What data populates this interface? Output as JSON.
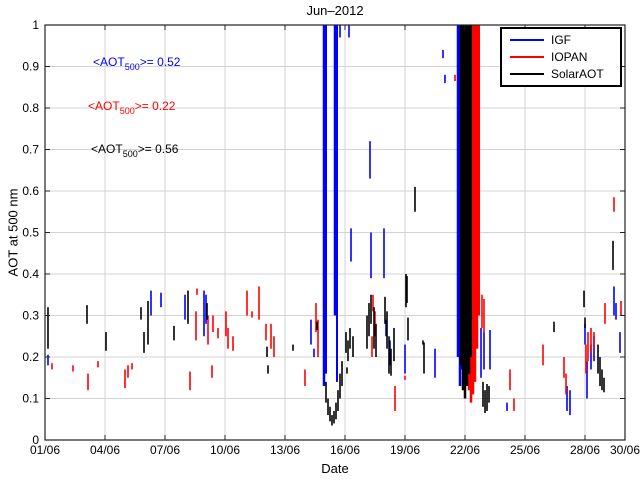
{
  "title": "Jun–2012",
  "axes": {
    "xlabel": "Date",
    "ylabel": "AOT at 500 nm"
  },
  "annotations": [
    {
      "id": "ann-igf",
      "prefix": "<AOT",
      "sub": "500",
      "suffix": ">= 0.52",
      "color": "#0000ff"
    },
    {
      "id": "ann-iopan",
      "prefix": "<AOT",
      "sub": "500",
      "suffix": ">= 0.22",
      "color": "#ff0000"
    },
    {
      "id": "ann-solar",
      "prefix": "<AOT",
      "sub": "500",
      "suffix": ">= 0.56",
      "color": "#000000"
    }
  ],
  "legend": {
    "items": [
      {
        "label": "IGF",
        "color": "#0000ff"
      },
      {
        "label": "IOPAN",
        "color": "#ff0000"
      },
      {
        "label": "SolarAOT",
        "color": "#000000"
      }
    ]
  },
  "chart_data": {
    "type": "line",
    "title": "Jun–2012",
    "xlabel": "Date",
    "ylabel": "AOT at 500 nm",
    "x_unit": "day of June 2012",
    "xlim_days": [
      1,
      30
    ],
    "ylim": [
      0,
      1
    ],
    "grid": true,
    "grid_color": "#d3d3d3",
    "axis_color": "#222222",
    "x_ticks": [
      {
        "day": 1,
        "label": "01/06"
      },
      {
        "day": 4,
        "label": "04/06"
      },
      {
        "day": 7,
        "label": "07/06"
      },
      {
        "day": 10,
        "label": "10/06"
      },
      {
        "day": 13,
        "label": "13/06"
      },
      {
        "day": 16,
        "label": "16/06"
      },
      {
        "day": 19,
        "label": "19/06"
      },
      {
        "day": 22,
        "label": "22/06"
      },
      {
        "day": 25,
        "label": "25/06"
      },
      {
        "day": 28,
        "label": "28/06"
      },
      {
        "day": 30,
        "label": "30/06"
      }
    ],
    "y_ticks": [
      {
        "v": 0,
        "label": "0"
      },
      {
        "v": 0.1,
        "label": "0.1"
      },
      {
        "v": 0.2,
        "label": "0.2"
      },
      {
        "v": 0.3,
        "label": "0.3"
      },
      {
        "v": 0.4,
        "label": "0.4"
      },
      {
        "v": 0.5,
        "label": "0.5"
      },
      {
        "v": 0.6,
        "label": "0.6"
      },
      {
        "v": 0.7,
        "label": "0.7"
      },
      {
        "v": 0.8,
        "label": "0.8"
      },
      {
        "v": 0.9,
        "label": "0.9"
      },
      {
        "v": 1,
        "label": "1"
      }
    ],
    "segment_format": "[day_of_june, aot_min, aot_max, optional_stroke_px]",
    "series": [
      {
        "name": "IGF",
        "color": "#0000ff",
        "mean_aot500": 0.52,
        "segments": [
          [
            1.15,
            0.18,
            0.205
          ],
          [
            6.3,
            0.3,
            0.36
          ],
          [
            6.8,
            0.32,
            0.355
          ],
          [
            8.0,
            0.29,
            0.35
          ],
          [
            8.95,
            0.25,
            0.36
          ],
          [
            9.05,
            0.28,
            0.35
          ],
          [
            14.3,
            0.23,
            0.29
          ],
          [
            14.45,
            0.2,
            0.22
          ],
          [
            14.95,
            0.13,
            1.0,
            2.5
          ],
          [
            15.05,
            0.16,
            1.0,
            2
          ],
          [
            15.5,
            0.3,
            1.0,
            2.5
          ],
          [
            15.6,
            0.14,
            1.0,
            2
          ],
          [
            15.75,
            0.97,
            1.0
          ],
          [
            16.2,
            0.97,
            1.0
          ],
          [
            16.3,
            0.43,
            0.51
          ],
          [
            17.25,
            0.63,
            0.72
          ],
          [
            17.3,
            0.39,
            0.5
          ],
          [
            17.95,
            0.39,
            0.51
          ],
          [
            18.05,
            0.25,
            0.29
          ],
          [
            18.25,
            0.18,
            0.24
          ],
          [
            19.0,
            0.16,
            0.23
          ],
          [
            20.5,
            0.15,
            0.22
          ],
          [
            20.9,
            0.92,
            0.94
          ],
          [
            21.0,
            0.86,
            0.88
          ],
          [
            21.65,
            0.2,
            1.0,
            2.5
          ],
          [
            21.75,
            0.13,
            1.0,
            2.5
          ],
          [
            21.85,
            0.17,
            1.0,
            2.5
          ],
          [
            21.95,
            0.15,
            1.0,
            2.5
          ],
          [
            22.05,
            0.22,
            1.0,
            2
          ],
          [
            22.8,
            0.15,
            0.27
          ],
          [
            22.95,
            0.17,
            0.26
          ],
          [
            23.25,
            0.17,
            0.265
          ],
          [
            24.1,
            0.07,
            0.09
          ],
          [
            27.1,
            0.07,
            0.13
          ],
          [
            27.25,
            0.06,
            0.12
          ],
          [
            28.0,
            0.23,
            0.28
          ],
          [
            28.1,
            0.1,
            0.19
          ],
          [
            28.3,
            0.17,
            0.23
          ],
          [
            28.45,
            0.19,
            0.25
          ],
          [
            29.45,
            0.3,
            0.37
          ],
          [
            29.55,
            0.29,
            0.33
          ],
          [
            29.75,
            0.21,
            0.26
          ]
        ]
      },
      {
        "name": "IOPAN",
        "color": "#ff0000",
        "mean_aot500": 0.22,
        "segments": [
          [
            1.35,
            0.17,
            0.185
          ],
          [
            2.4,
            0.165,
            0.18
          ],
          [
            3.15,
            0.12,
            0.16
          ],
          [
            3.65,
            0.175,
            0.19
          ],
          [
            5.0,
            0.125,
            0.17
          ],
          [
            5.15,
            0.15,
            0.18
          ],
          [
            5.35,
            0.17,
            0.185
          ],
          [
            8.25,
            0.12,
            0.165
          ],
          [
            8.55,
            0.24,
            0.31
          ],
          [
            8.6,
            0.35,
            0.365
          ],
          [
            9.15,
            0.23,
            0.3
          ],
          [
            9.35,
            0.15,
            0.18
          ],
          [
            9.4,
            0.26,
            0.3
          ],
          [
            9.65,
            0.245,
            0.27
          ],
          [
            10.05,
            0.25,
            0.31
          ],
          [
            10.15,
            0.22,
            0.27
          ],
          [
            10.4,
            0.215,
            0.25
          ],
          [
            11.1,
            0.3,
            0.36
          ],
          [
            11.35,
            0.295,
            0.31
          ],
          [
            11.7,
            0.29,
            0.37
          ],
          [
            12.05,
            0.24,
            0.28
          ],
          [
            12.3,
            0.22,
            0.28
          ],
          [
            12.45,
            0.2,
            0.25
          ],
          [
            14.0,
            0.13,
            0.17
          ],
          [
            14.55,
            0.26,
            0.33
          ],
          [
            14.65,
            0.2,
            0.29
          ],
          [
            17.35,
            0.2,
            0.25
          ],
          [
            17.4,
            0.31,
            0.35
          ],
          [
            17.5,
            0.25,
            0.31
          ],
          [
            18.5,
            0.07,
            0.13
          ],
          [
            19.0,
            0.145,
            0.155
          ],
          [
            21.5,
            0.865,
            0.88
          ],
          [
            22.1,
            0.3,
            1.0,
            2.5
          ],
          [
            22.2,
            0.12,
            1.0,
            2.5
          ],
          [
            22.3,
            0.09,
            1.0,
            2.5
          ],
          [
            22.4,
            0.11,
            1.0,
            2.5
          ],
          [
            22.5,
            0.14,
            1.0,
            2.5
          ],
          [
            22.6,
            0.22,
            1.0,
            2.5
          ],
          [
            22.7,
            0.3,
            1.0,
            2
          ],
          [
            22.85,
            0.27,
            0.35
          ],
          [
            22.95,
            0.26,
            0.34
          ],
          [
            24.25,
            0.12,
            0.17
          ],
          [
            24.45,
            0.07,
            0.1
          ],
          [
            25.9,
            0.18,
            0.23
          ],
          [
            26.95,
            0.15,
            0.2
          ],
          [
            27.05,
            0.11,
            0.16
          ],
          [
            28.05,
            0.16,
            0.23
          ],
          [
            28.15,
            0.19,
            0.26
          ],
          [
            28.3,
            0.21,
            0.27
          ],
          [
            28.45,
            0.22,
            0.26
          ],
          [
            29.0,
            0.28,
            0.33
          ],
          [
            29.45,
            0.55,
            0.585
          ],
          [
            29.8,
            0.3,
            0.335
          ]
        ]
      },
      {
        "name": "SolarAOT",
        "color": "#000000",
        "mean_aot500": 0.56,
        "segments": [
          [
            1.15,
            0.22,
            0.32
          ],
          [
            3.1,
            0.28,
            0.325
          ],
          [
            4.05,
            0.215,
            0.26
          ],
          [
            5.8,
            0.29,
            0.32
          ],
          [
            5.95,
            0.21,
            0.26
          ],
          [
            6.15,
            0.23,
            0.335
          ],
          [
            7.45,
            0.24,
            0.275
          ],
          [
            8.15,
            0.28,
            0.36
          ],
          [
            9.1,
            0.29,
            0.33
          ],
          [
            12.1,
            0.2,
            0.225
          ],
          [
            12.15,
            0.16,
            0.18
          ],
          [
            13.4,
            0.215,
            0.23
          ],
          [
            14.6,
            0.265,
            0.285
          ],
          [
            15.05,
            0.09,
            0.14
          ],
          [
            15.15,
            0.06,
            0.1
          ],
          [
            15.25,
            0.045,
            0.08
          ],
          [
            15.35,
            0.035,
            0.06
          ],
          [
            15.45,
            0.04,
            0.07
          ],
          [
            15.55,
            0.05,
            0.09
          ],
          [
            15.65,
            0.07,
            0.12
          ],
          [
            15.75,
            0.1,
            0.16
          ],
          [
            15.85,
            0.13,
            0.19
          ],
          [
            16.05,
            0.21,
            0.26
          ],
          [
            16.1,
            0.16,
            0.175
          ],
          [
            16.15,
            0.19,
            0.24
          ],
          [
            16.25,
            0.22,
            0.27
          ],
          [
            16.4,
            0.2,
            0.25
          ],
          [
            17.1,
            0.22,
            0.3
          ],
          [
            17.2,
            0.25,
            0.33
          ],
          [
            17.3,
            0.28,
            0.35
          ],
          [
            17.45,
            0.22,
            0.32
          ],
          [
            17.55,
            0.2,
            0.28
          ],
          [
            18.0,
            0.28,
            0.345
          ],
          [
            18.1,
            0.22,
            0.31
          ],
          [
            18.2,
            0.16,
            0.25
          ],
          [
            18.3,
            0.155,
            0.22
          ],
          [
            18.45,
            0.19,
            0.27
          ],
          [
            19.05,
            0.32,
            0.4
          ],
          [
            19.1,
            0.33,
            0.395
          ],
          [
            19.15,
            0.24,
            0.295
          ],
          [
            19.5,
            0.55,
            0.61
          ],
          [
            19.9,
            0.23,
            0.24
          ],
          [
            19.95,
            0.16,
            0.235
          ],
          [
            21.8,
            0.18,
            1.0,
            2.5
          ],
          [
            21.9,
            0.12,
            1.0,
            2.5
          ],
          [
            22.0,
            0.1,
            1.0,
            2.5
          ],
          [
            22.1,
            0.13,
            1.0,
            2.5
          ],
          [
            22.2,
            0.16,
            1.0,
            2.5
          ],
          [
            22.3,
            0.2,
            1.0,
            2
          ],
          [
            22.9,
            0.08,
            0.14
          ],
          [
            23.0,
            0.065,
            0.12
          ],
          [
            23.1,
            0.07,
            0.135
          ],
          [
            23.2,
            0.09,
            0.13
          ],
          [
            26.45,
            0.26,
            0.285
          ],
          [
            27.95,
            0.32,
            0.36
          ],
          [
            28.0,
            0.27,
            0.295
          ],
          [
            28.65,
            0.16,
            0.23
          ],
          [
            28.75,
            0.13,
            0.2
          ],
          [
            28.85,
            0.12,
            0.17
          ],
          [
            28.95,
            0.115,
            0.15
          ],
          [
            29.4,
            0.41,
            0.48
          ]
        ]
      }
    ]
  }
}
